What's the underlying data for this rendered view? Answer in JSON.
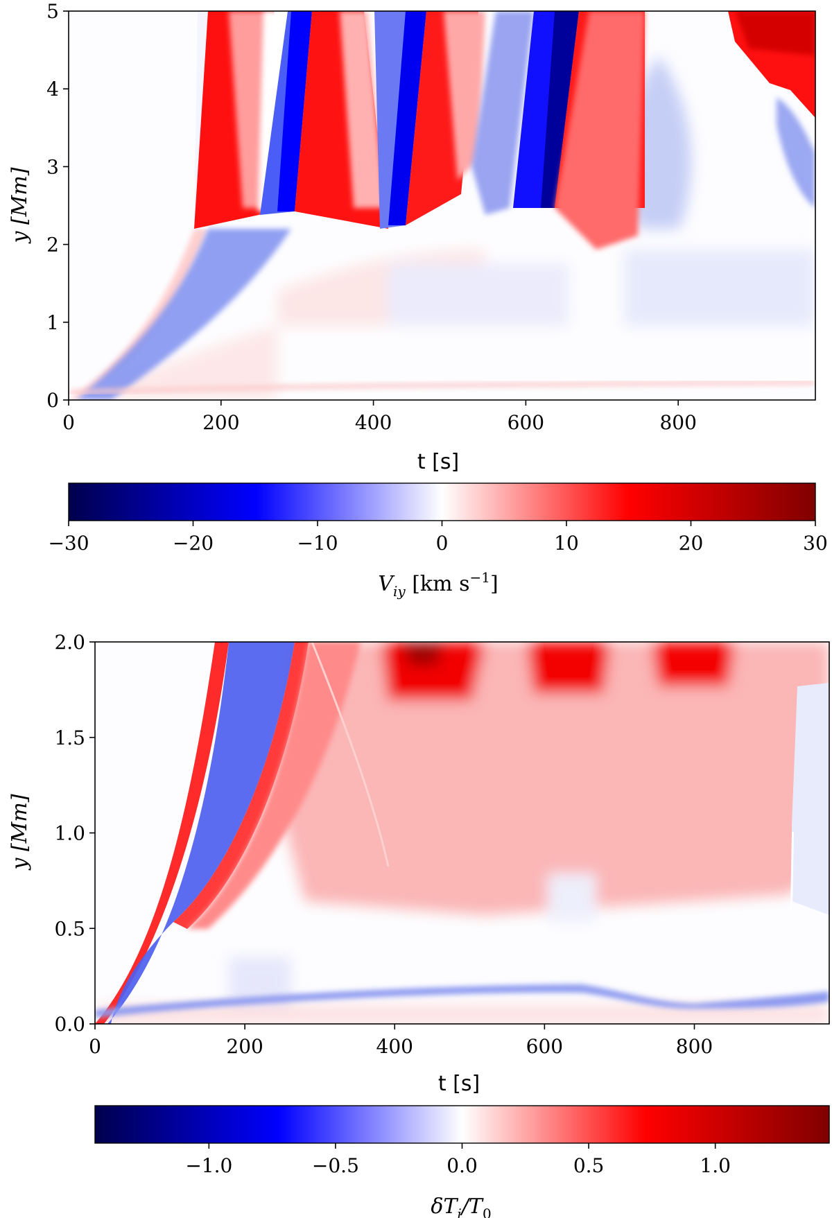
{
  "chart_data": [
    {
      "type": "heatmap",
      "title": "",
      "xlabel": "t [s]",
      "ylabel": "y [Mm]",
      "xlim": [
        0,
        980
      ],
      "ylim": [
        0,
        5
      ],
      "xticks": [
        0,
        200,
        400,
        600,
        800
      ],
      "xtick_labels": [
        "0",
        "200",
        "400",
        "600",
        "800"
      ],
      "yticks": [
        0,
        1,
        2,
        3,
        4,
        5
      ],
      "ytick_labels": [
        "0",
        "1",
        "2",
        "3",
        "4",
        "5"
      ],
      "colormap": "seismic",
      "colorbar": {
        "label": "V_iy [km s^-1]",
        "range": [
          -30,
          30
        ],
        "ticks": [
          -30,
          -20,
          -10,
          0,
          10,
          20,
          30
        ],
        "tick_labels": [
          "−30",
          "−20",
          "−10",
          "0",
          "10",
          "20",
          "30"
        ]
      }
    },
    {
      "type": "heatmap",
      "title": "",
      "xlabel": "t [s]",
      "ylabel": "y [Mm]",
      "xlim": [
        0,
        980
      ],
      "ylim": [
        0,
        2
      ],
      "xticks": [
        0,
        200,
        400,
        600,
        800
      ],
      "xtick_labels": [
        "0",
        "200",
        "400",
        "600",
        "800"
      ],
      "yticks": [
        0,
        0.5,
        1,
        1.5,
        2
      ],
      "ytick_labels": [
        "0.0",
        "0.5",
        "1.0",
        "1.5",
        "2.0"
      ],
      "colormap": "seismic",
      "colorbar": {
        "label": "δT_i/T_0",
        "range": [
          -1.45,
          1.45
        ],
        "ticks": [
          -1,
          -0.5,
          0,
          0.5,
          1
        ],
        "tick_labels": [
          "−1.0",
          "−0.5",
          "0.0",
          "0.5",
          "1.0"
        ]
      }
    }
  ],
  "colors": {
    "dark_blue": "#00004d",
    "blue": "#0000ff",
    "white": "#ffffff",
    "red": "#ff0000",
    "dark_red": "#800000"
  }
}
